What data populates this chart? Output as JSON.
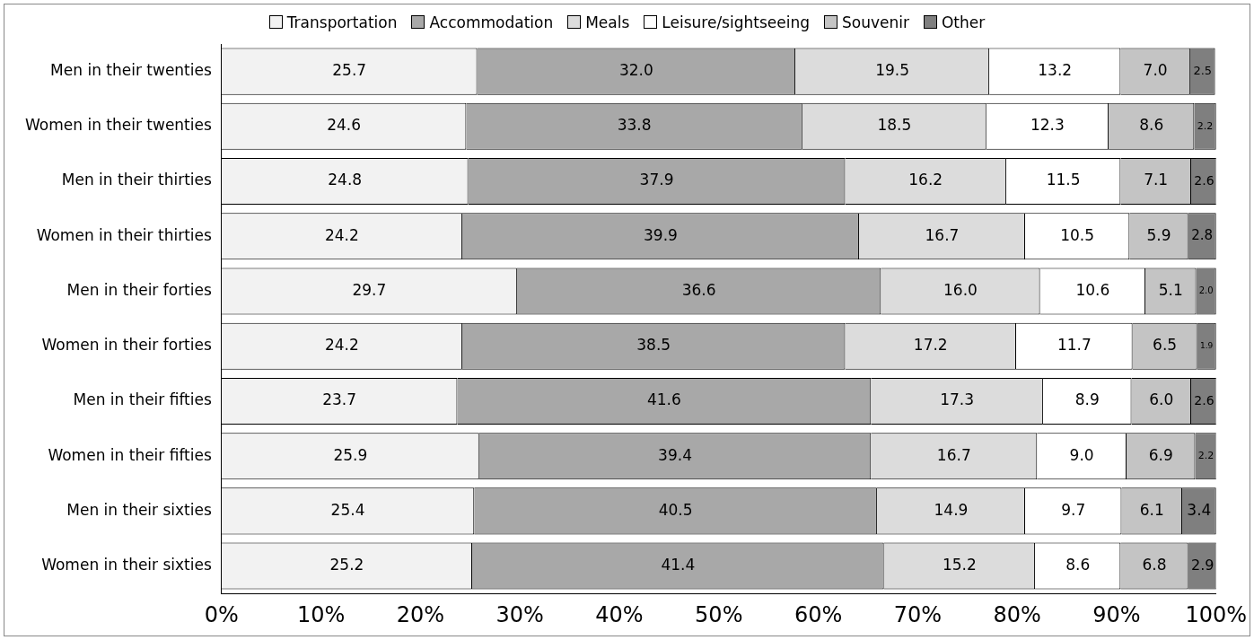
{
  "chart_data": {
    "type": "bar",
    "orientation": "horizontal",
    "stacked": true,
    "legend": "top",
    "grid": false,
    "categories": [
      "Men in their twenties",
      "Women in their twenties",
      "Men in their thirties",
      "Women in their thirties",
      "Men in their forties",
      "Women in their forties",
      "Men in their fifties",
      "Women in their fifties",
      "Men in their sixties",
      "Women in their sixties"
    ],
    "xlim": [
      0,
      100
    ],
    "xticks": [
      {
        "value": 0,
        "label": "0%"
      },
      {
        "value": 10,
        "label": "10%"
      },
      {
        "value": 20,
        "label": "20%"
      },
      {
        "value": 30,
        "label": "30%"
      },
      {
        "value": 40,
        "label": "40%"
      },
      {
        "value": 50,
        "label": "50%"
      },
      {
        "value": 60,
        "label": "60%"
      },
      {
        "value": 70,
        "label": "70%"
      },
      {
        "value": 80,
        "label": "80%"
      },
      {
        "value": 90,
        "label": "90%"
      },
      {
        "value": 100,
        "label": "100%"
      }
    ],
    "series": [
      {
        "name": "Transportation",
        "color": "#f2f2f2",
        "values": [
          25.7,
          24.6,
          24.8,
          24.2,
          29.7,
          24.2,
          23.7,
          25.9,
          25.4,
          25.2
        ],
        "value_labels": [
          "25.7",
          "24.6",
          "24.8",
          "24.2",
          "29.7",
          "24.2",
          "23.7",
          "25.9",
          "25.4",
          "25.2"
        ]
      },
      {
        "name": "Accommodation",
        "color": "#a8a8a8",
        "values": [
          32.0,
          33.8,
          37.9,
          39.9,
          36.6,
          38.5,
          41.6,
          39.4,
          40.5,
          41.4
        ],
        "value_labels": [
          "32.0",
          "33.8",
          "37.9",
          "39.9",
          "36.6",
          "38.5",
          "41.6",
          "39.4",
          "40.5",
          "41.4"
        ]
      },
      {
        "name": "Meals",
        "color": "#dcdcdc",
        "values": [
          19.5,
          18.5,
          16.2,
          16.7,
          16.0,
          17.2,
          17.3,
          16.7,
          14.9,
          15.2
        ],
        "value_labels": [
          "19.5",
          "18.5",
          "16.2",
          "16.7",
          "16.0",
          "17.2",
          "17.3",
          "16.7",
          "14.9",
          "15.2"
        ]
      },
      {
        "name": "Leisure/sightseeing",
        "color": "#ffffff",
        "values": [
          13.2,
          12.3,
          11.5,
          10.5,
          10.6,
          11.7,
          8.9,
          9.0,
          9.7,
          8.6
        ],
        "value_labels": [
          "13.2",
          "12.3",
          "11.5",
          "10.5",
          "10.6",
          "11.7",
          "8.9",
          "9.0",
          "9.7",
          "8.6"
        ]
      },
      {
        "name": "Souvenir",
        "color": "#c4c4c4",
        "values": [
          7.0,
          8.6,
          7.1,
          5.9,
          5.1,
          6.5,
          6.0,
          6.9,
          6.1,
          6.8
        ],
        "value_labels": [
          "7.0",
          "8.6",
          "7.1",
          "5.9",
          "5.1",
          "6.5",
          "6.0",
          "6.9",
          "6.1",
          "6.8"
        ]
      },
      {
        "name": "Other",
        "color": "#7f7f7f",
        "values": [
          2.5,
          2.2,
          2.6,
          2.8,
          2.0,
          1.9,
          2.6,
          2.2,
          3.4,
          2.9
        ],
        "value_labels": [
          "2.5",
          "2.2",
          "2.6",
          "2.8",
          "2.0",
          "1.9",
          "2.6",
          "2.2",
          "3.4",
          "2.9"
        ]
      }
    ]
  }
}
